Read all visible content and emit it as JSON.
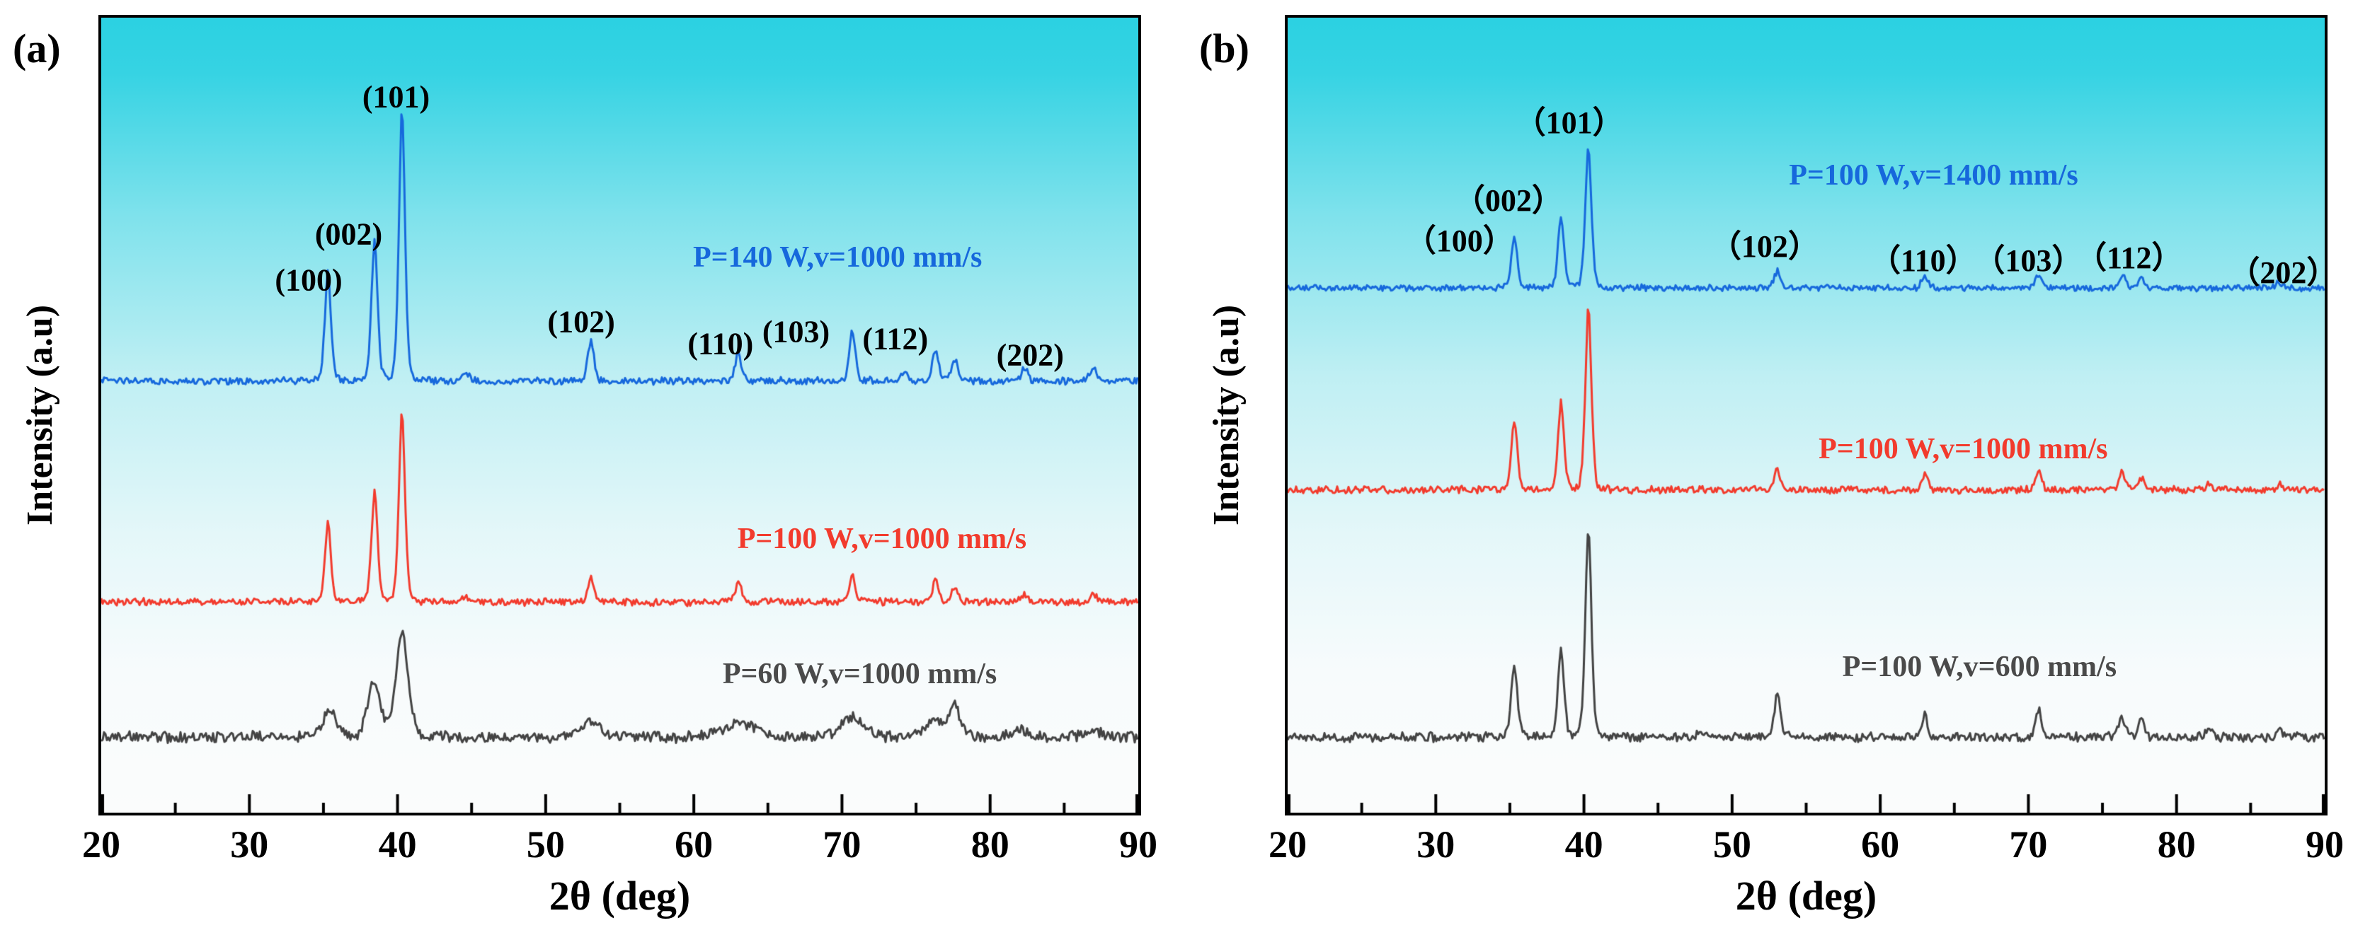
{
  "figure": {
    "background_top_color": "#2bd1e2",
    "background_bottom_color": "#fbfcfc",
    "frame_color": "#000000"
  },
  "chart_data": [
    {
      "type": "line",
      "panel_label": "(a)",
      "xlabel": "2θ (deg)",
      "ylabel": "Intensity (a.u)",
      "xlim": [
        20,
        90
      ],
      "x_ticks": [
        20,
        30,
        40,
        50,
        60,
        70,
        80,
        90
      ],
      "x_minor_tick_step": 5,
      "grid": false,
      "peak_positions_deg": {
        "(100)": 35.3,
        "(002)": 38.45,
        "(101)": 40.3,
        "(102)": 53.05,
        "(110)": 63.0,
        "(103)": 70.7,
        "(112)": 76.3,
        "(202)": 86.95
      },
      "peak_labels": [
        {
          "text": "(100)",
          "x": 34.0,
          "y": 0.33
        },
        {
          "text": "(002)",
          "x": 36.7,
          "y": 0.272
        },
        {
          "text": "(101)",
          "x": 39.9,
          "y": 0.1
        },
        {
          "text": "(102)",
          "x": 52.4,
          "y": 0.383
        },
        {
          "text": "(110)",
          "x": 61.8,
          "y": 0.41
        },
        {
          "text": "(103)",
          "x": 66.9,
          "y": 0.395
        },
        {
          "text": "(112)",
          "x": 73.6,
          "y": 0.404
        },
        {
          "text": "(202)",
          "x": 82.7,
          "y": 0.424
        }
      ],
      "series": [
        {
          "name": "P=60 W,v=1000 mm/s",
          "color": "#434343",
          "legend_color": "#4a4a4a",
          "baseline": 0.905,
          "amplitude": 0.13,
          "peak_sigma": 0.45,
          "noise": 0.006,
          "peaks": [
            [
              35.4,
              0.28
            ],
            [
              38.4,
              0.55
            ],
            [
              40.3,
              1.0
            ],
            [
              53.0,
              0.15,
              0.8
            ],
            [
              63.0,
              0.14,
              1.2
            ],
            [
              70.7,
              0.2,
              0.8
            ],
            [
              76.3,
              0.15,
              0.8
            ],
            [
              77.6,
              0.32,
              0.35
            ],
            [
              82.1,
              0.06,
              0.6
            ],
            [
              86.9,
              0.06,
              0.6
            ]
          ],
          "legend": {
            "x": 71.2,
            "y": 0.826
          }
        },
        {
          "name": "P=100 W,v=1000 mm/s",
          "color": "#f23b2d",
          "legend_color": "#f23b2d",
          "baseline": 0.735,
          "amplitude": 0.24,
          "peak_sigma": 0.22,
          "noise": 0.004,
          "peaks": [
            [
              35.3,
              0.42
            ],
            [
              38.45,
              0.58
            ],
            [
              40.3,
              1.0
            ],
            [
              44.6,
              0.02
            ],
            [
              53.05,
              0.13
            ],
            [
              63.0,
              0.1
            ],
            [
              70.7,
              0.15
            ],
            [
              76.3,
              0.11
            ],
            [
              77.6,
              0.08
            ],
            [
              82.3,
              0.04
            ],
            [
              86.95,
              0.04
            ]
          ],
          "legend": {
            "x": 72.7,
            "y": 0.656
          }
        },
        {
          "name": "P=140 W,v=1000 mm/s",
          "color": "#1668dc",
          "legend_color": "#1668dc",
          "baseline": 0.457,
          "amplitude": 0.345,
          "peak_sigma": 0.22,
          "noise": 0.004,
          "peaks": [
            [
              35.3,
              0.4
            ],
            [
              38.45,
              0.52
            ],
            [
              40.3,
              1.0
            ],
            [
              44.6,
              0.03
            ],
            [
              53.05,
              0.15
            ],
            [
              63.0,
              0.1
            ],
            [
              70.7,
              0.18
            ],
            [
              74.2,
              0.03
            ],
            [
              76.3,
              0.11
            ],
            [
              77.6,
              0.08
            ],
            [
              82.3,
              0.05
            ],
            [
              86.95,
              0.05
            ]
          ],
          "legend": {
            "x": 69.7,
            "y": 0.302
          }
        }
      ]
    },
    {
      "type": "line",
      "panel_label": "(b)",
      "xlabel": "2θ (deg)",
      "ylabel": "Intensity (a.u)",
      "xlim": [
        20,
        90
      ],
      "x_ticks": [
        20,
        30,
        40,
        50,
        60,
        70,
        80,
        90
      ],
      "x_minor_tick_step": 5,
      "grid": false,
      "peak_positions_deg": {
        "(100)": 35.3,
        "(002)": 38.45,
        "(101)": 40.3,
        "(102)": 53.05,
        "(110)": 63.0,
        "(103)": 70.7,
        "(112)": 76.3,
        "(202)": 86.95
      },
      "peak_labels": [
        {
          "text": "（100）",
          "x": 31.6,
          "y": 0.277
        },
        {
          "text": "（002）",
          "x": 34.9,
          "y": 0.226
        },
        {
          "text": "（101）",
          "x": 39.0,
          "y": 0.128
        },
        {
          "text": "（102）",
          "x": 52.2,
          "y": 0.284
        },
        {
          "text": "（110）",
          "x": 62.9,
          "y": 0.302
        },
        {
          "text": "（103）",
          "x": 70.0,
          "y": 0.302
        },
        {
          "text": "（112）",
          "x": 76.8,
          "y": 0.298
        },
        {
          "text": "（202）",
          "x": 87.2,
          "y": 0.317
        }
      ],
      "series": [
        {
          "name": "P=100 W,v=600 mm/s",
          "color": "#434343",
          "legend_color": "#4a4a4a",
          "baseline": 0.905,
          "amplitude": 0.265,
          "peak_sigma": 0.22,
          "noise": 0.005,
          "peaks": [
            [
              35.3,
              0.35
            ],
            [
              38.45,
              0.42
            ],
            [
              40.3,
              1.0
            ],
            [
              47.8,
              0.02
            ],
            [
              53.05,
              0.2
            ],
            [
              63.0,
              0.11
            ],
            [
              70.7,
              0.13
            ],
            [
              76.3,
              0.11
            ],
            [
              77.6,
              0.09
            ],
            [
              82.2,
              0.04
            ],
            [
              86.95,
              0.05
            ]
          ],
          "legend": {
            "x": 66.7,
            "y": 0.817
          }
        },
        {
          "name": "P=100 W,v=1000 mm/s",
          "color": "#f23b2d",
          "legend_color": "#f23b2d",
          "baseline": 0.594,
          "amplitude": 0.228,
          "peak_sigma": 0.22,
          "noise": 0.004,
          "peaks": [
            [
              35.3,
              0.38
            ],
            [
              38.45,
              0.48
            ],
            [
              40.3,
              1.0
            ],
            [
              53.05,
              0.12
            ],
            [
              63.0,
              0.09
            ],
            [
              70.7,
              0.11
            ],
            [
              76.3,
              0.1
            ],
            [
              77.6,
              0.07
            ],
            [
              82.2,
              0.03
            ],
            [
              86.95,
              0.03
            ]
          ],
          "legend": {
            "x": 65.6,
            "y": 0.543
          }
        },
        {
          "name": "P=100 W,v=1400 mm/s",
          "color": "#1668dc",
          "legend_color": "#1668dc",
          "baseline": 0.34,
          "amplitude": 0.18,
          "peak_sigma": 0.22,
          "noise": 0.0035,
          "peaks": [
            [
              35.3,
              0.35
            ],
            [
              38.45,
              0.5
            ],
            [
              40.3,
              1.0
            ],
            [
              53.05,
              0.12
            ],
            [
              63.0,
              0.09
            ],
            [
              70.7,
              0.1
            ],
            [
              76.4,
              0.09
            ],
            [
              77.6,
              0.06
            ],
            [
              86.95,
              0.04
            ]
          ],
          "legend": {
            "x": 63.6,
            "y": 0.198
          }
        }
      ]
    }
  ]
}
